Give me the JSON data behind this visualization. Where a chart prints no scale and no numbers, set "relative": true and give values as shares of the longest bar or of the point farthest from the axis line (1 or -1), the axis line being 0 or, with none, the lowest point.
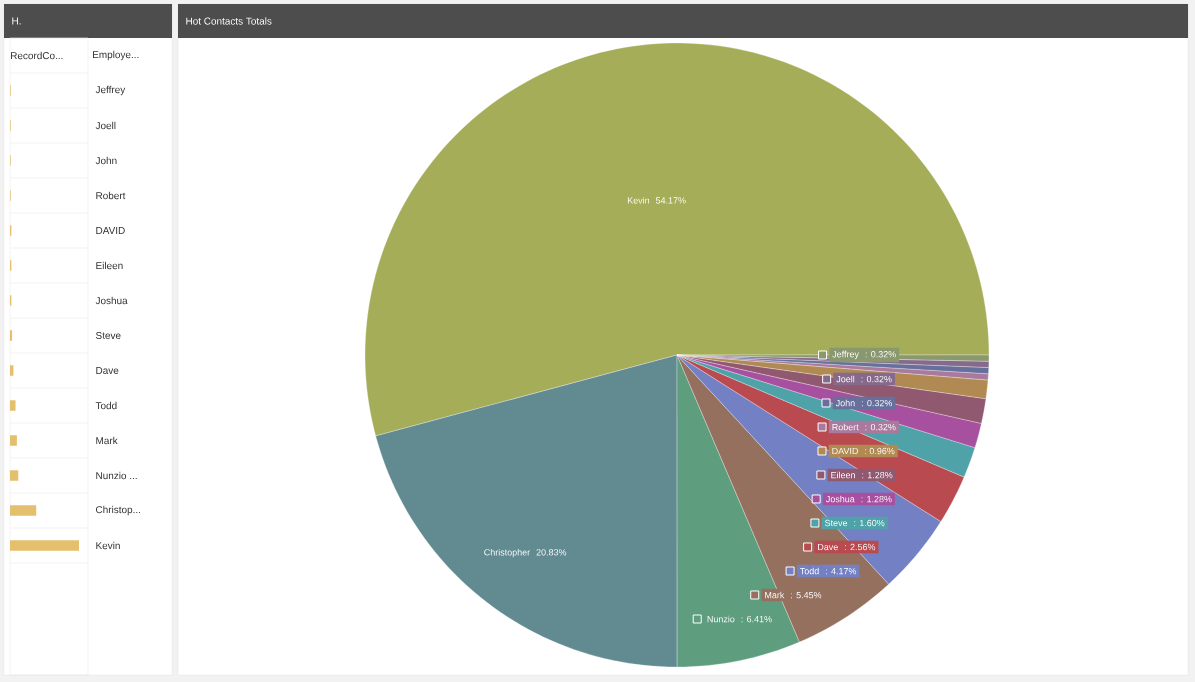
{
  "chart_data": [
    {
      "type": "bar",
      "orientation": "horizontal",
      "relative": true,
      "title": "H.",
      "categories": [
        "Jeffrey",
        "Joell",
        "John",
        "Robert",
        "DAVID",
        "Eileen",
        "Joshua",
        "Steve",
        "Dave",
        "Todd",
        "Mark",
        "Nunzio ...",
        "Christop...",
        "Kevin"
      ],
      "values": [
        0.01,
        0.01,
        0.01,
        0.01,
        0.02,
        0.02,
        0.02,
        0.03,
        0.05,
        0.08,
        0.1,
        0.12,
        0.38,
        1
      ],
      "color": "#e4c06e",
      "annotations": [
        "RecordCo...",
        "Employe..."
      ]
    },
    {
      "type": "pie",
      "title": "Hot Contacts Totals",
      "legend": "right",
      "categories": [
        "Kevin",
        "Christopher",
        "Nunzio",
        "Mark",
        "Todd",
        "Dave",
        "Steve",
        "Joshua",
        "Eileen",
        "DAVID",
        "Robert",
        "John",
        "Joell",
        "Jeffrey"
      ],
      "values": [
        54.17,
        20.83,
        6.41,
        5.45,
        4.17,
        2.56,
        1.6,
        1.28,
        1.28,
        0.96,
        0.32,
        0.32,
        0.32,
        0.32
      ],
      "colors": [
        "#a5ad58",
        "#628a91",
        "#5e9e7e",
        "#96705f",
        "#7381c4",
        "#b94a50",
        "#4fa2a8",
        "#a750a0",
        "#905970",
        "#b08a52",
        "#a97a9e",
        "#66709a",
        "#866a8c",
        "#8a9870"
      ],
      "value_labels": [
        "54.17%",
        "20.83%",
        ": 6.41%",
        ": 5.45%",
        ": 4.17%",
        ": 2.56%",
        ": 1.60%",
        ": 1.28%",
        ": 1.28%",
        ": 0.96%",
        ": 0.32%",
        ": 0.32%",
        ": 0.32%",
        ": 0.32%"
      ]
    }
  ]
}
